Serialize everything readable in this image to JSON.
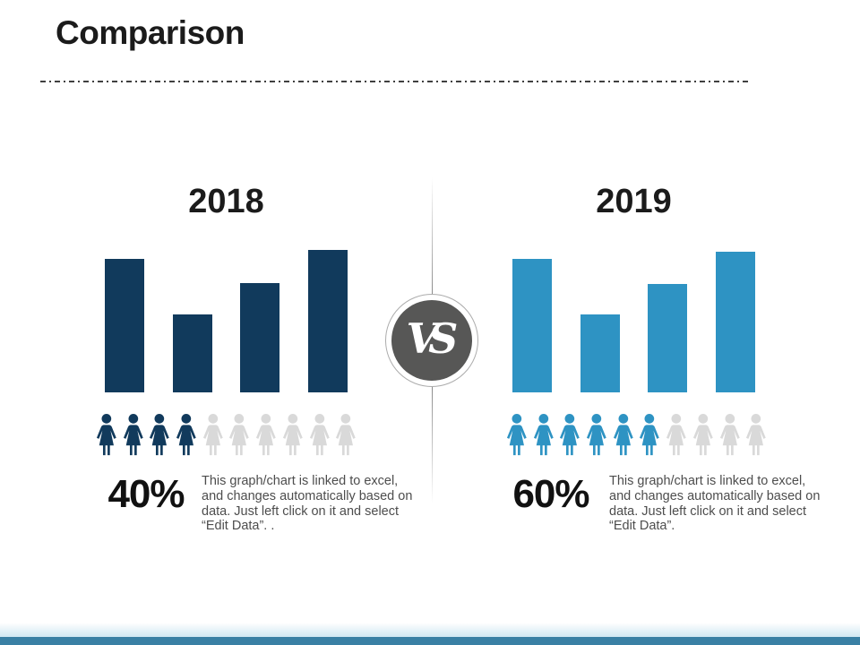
{
  "slide": {
    "title": "Comparison",
    "background": "#ffffff",
    "colors": {
      "navy": "#113A5C",
      "teal": "#2E93C3",
      "inactive_gray": "#D9D9D9",
      "bottom_bar": "#3A80A4",
      "divider_dash": "#3F3F3F",
      "vs_circle": "#575756",
      "vs_text": "#FFFFFF"
    },
    "vs_badge": {
      "label": "VS"
    }
  },
  "panels": [
    {
      "year": "2018",
      "percent": "40%",
      "description": "This graph/chart is linked to excel, and changes automatically based on data. Just left click on it and select “Edit Data”. .",
      "color": "#113A5C",
      "pictograph": {
        "icon": "woman-icon",
        "total": 10,
        "filled": 4
      }
    },
    {
      "year": "2019",
      "percent": "60%",
      "description": "This graph/chart is linked to excel, and changes automatically based on data. Just left click on it and select “Edit Data”.",
      "color": "#2E93C3",
      "pictograph": {
        "icon": "woman-icon",
        "total": 10,
        "filled": 6
      }
    }
  ],
  "chart_data": [
    {
      "type": "bar",
      "title": "2018",
      "categories": [
        "",
        "",
        "",
        ""
      ],
      "values": [
        94,
        55,
        77,
        100
      ],
      "units": "relative height %",
      "ylim": [
        0,
        100
      ],
      "bar_color": "#113A5C",
      "xlabel": "",
      "ylabel": "",
      "grid": false,
      "legend": "none"
    },
    {
      "type": "bar",
      "title": "2019",
      "categories": [
        "",
        "",
        "",
        ""
      ],
      "values": [
        94,
        55,
        76,
        99
      ],
      "units": "relative height %",
      "ylim": [
        0,
        100
      ],
      "bar_color": "#2E93C3",
      "xlabel": "",
      "ylabel": "",
      "grid": false,
      "legend": "none"
    }
  ]
}
